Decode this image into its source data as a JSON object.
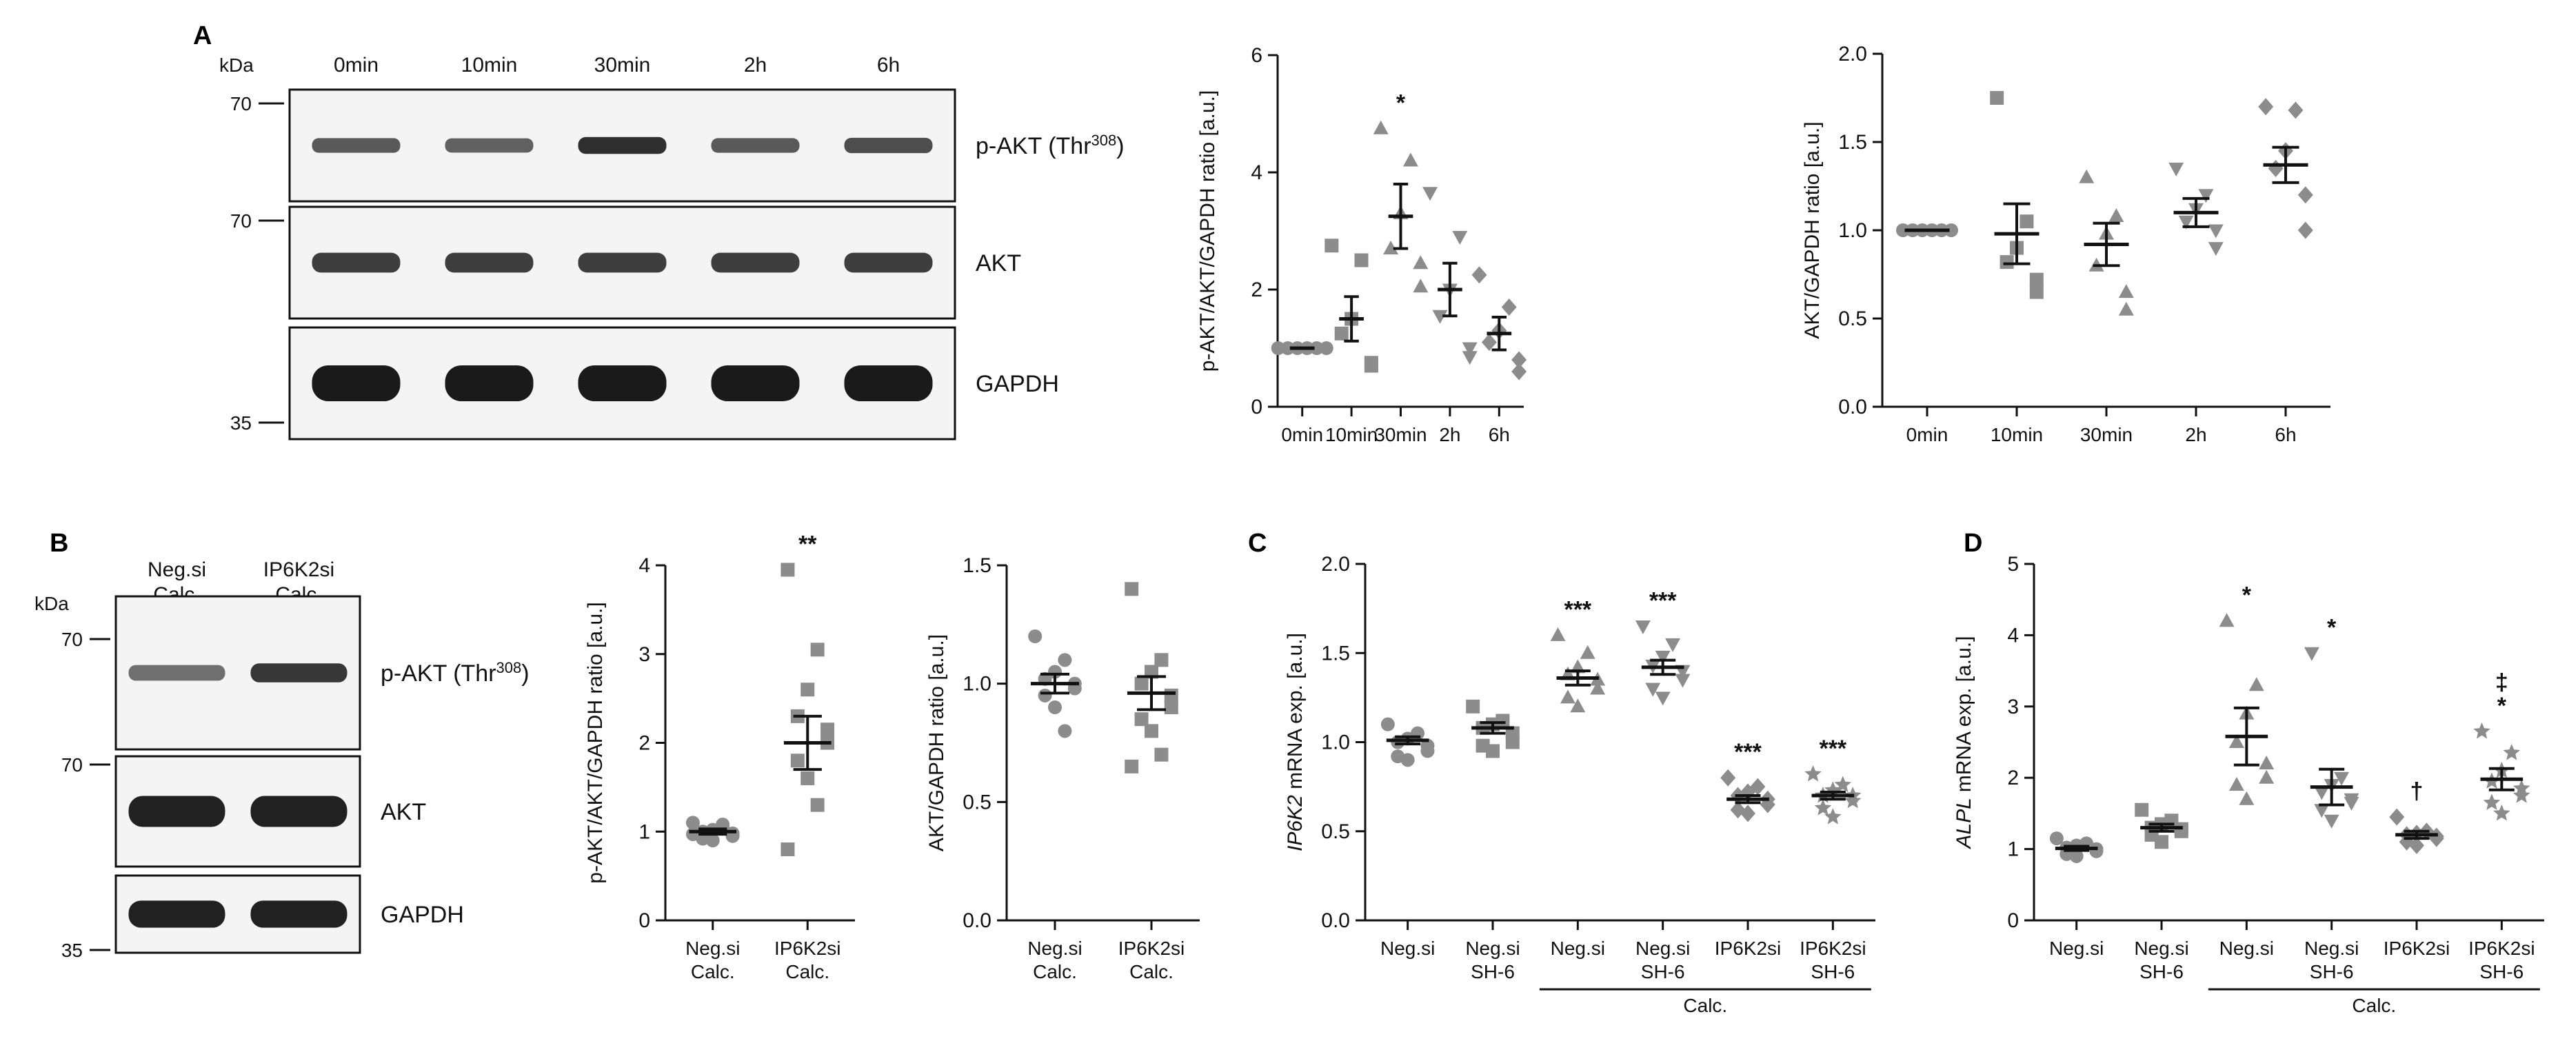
{
  "panels": {
    "A": "A",
    "B": "B",
    "C": "C",
    "D": "D"
  },
  "colors": {
    "ink": "#111111",
    "marker": "#8c8c8c",
    "marker_dark": "#808080",
    "blot_band": "#1a1a1a",
    "blot_bg": "#f4f4f4"
  },
  "blots": [
    {
      "panel": "A",
      "kda_label": "kDa",
      "columns": [
        "0min",
        "10min",
        "30min",
        "2h",
        "6h"
      ],
      "rows": [
        {
          "label": "p-AKT (Thr",
          "superscript": "308",
          "close": ")",
          "marker": "70"
        },
        {
          "label": "AKT",
          "superscript": "",
          "close": "",
          "marker": "70"
        },
        {
          "label": "GAPDH",
          "superscript": "",
          "close": "",
          "marker": "35"
        }
      ],
      "band_intensity": [
        [
          0.55,
          0.5,
          0.85,
          0.55,
          0.65
        ],
        [
          0.75,
          0.75,
          0.75,
          0.75,
          0.75
        ],
        [
          1.0,
          1.0,
          1.0,
          1.0,
          1.0
        ]
      ]
    },
    {
      "panel": "B",
      "kda_label": "kDa",
      "columns": [
        [
          "Neg.si",
          "Calc."
        ],
        [
          "IP6K2si",
          "Calc."
        ]
      ],
      "rows": [
        {
          "label": "p-AKT (Thr",
          "superscript": "308",
          "close": ")",
          "marker": "70"
        },
        {
          "label": "AKT",
          "superscript": "",
          "close": "",
          "marker": "70"
        },
        {
          "label": "GAPDH",
          "superscript": "",
          "close": "",
          "marker": "35"
        }
      ],
      "band_intensity": [
        [
          0.4,
          0.8
        ],
        [
          0.95,
          0.95
        ],
        [
          0.95,
          0.95
        ]
      ]
    }
  ],
  "chart_data": [
    {
      "id": "A1",
      "type": "scatter",
      "ylabel": "p-AKT/AKT/GAPDH ratio [a.u.]",
      "ylim": [
        0,
        6
      ],
      "yticks": [
        "0",
        "2",
        "4",
        "6"
      ],
      "ytick_values": [
        0,
        2,
        4,
        6
      ],
      "categories": [
        [
          "0min"
        ],
        [
          "10min"
        ],
        [
          "30min"
        ],
        [
          "2h"
        ],
        [
          "6h"
        ]
      ],
      "markers": [
        "circle",
        "square",
        "triangle",
        "triangle-down",
        "diamond"
      ],
      "points": [
        [
          1,
          1,
          1,
          1,
          1,
          1
        ],
        [
          2.75,
          2.5,
          1.5,
          1.25,
          0.75,
          0.7
        ],
        [
          4.75,
          4.2,
          3.3,
          2.7,
          2.45,
          2.05
        ],
        [
          3.65,
          2.9,
          2.0,
          1.55,
          1.0,
          0.85
        ],
        [
          2.25,
          1.7,
          1.3,
          1.1,
          0.8,
          0.6
        ]
      ],
      "mean": [
        1.0,
        1.5,
        3.25,
        2.0,
        1.25
      ],
      "sem": [
        0.0,
        0.38,
        0.55,
        0.45,
        0.28
      ],
      "significance": [
        "",
        "",
        "*",
        "",
        ""
      ]
    },
    {
      "id": "A2",
      "type": "scatter",
      "ylabel": "AKT/GAPDH ratio [a.u.]",
      "ylim": [
        0,
        2
      ],
      "yticks": [
        "0.0",
        "0.5",
        "1.0",
        "1.5",
        "2.0"
      ],
      "ytick_values": [
        0,
        0.5,
        1,
        1.5,
        2
      ],
      "categories": [
        [
          "0min"
        ],
        [
          "10min"
        ],
        [
          "30min"
        ],
        [
          "2h"
        ],
        [
          "6h"
        ]
      ],
      "markers": [
        "circle",
        "square",
        "triangle",
        "triangle-down",
        "diamond"
      ],
      "points": [
        [
          1,
          1,
          1,
          1,
          1,
          1
        ],
        [
          1.75,
          1.05,
          0.9,
          0.82,
          0.72,
          0.65
        ],
        [
          1.3,
          1.08,
          0.98,
          0.8,
          0.65,
          0.55
        ],
        [
          1.35,
          1.2,
          1.12,
          1.05,
          1.0,
          0.9
        ],
        [
          1.7,
          1.68,
          1.45,
          1.35,
          1.2,
          1.0
        ]
      ],
      "mean": [
        1.0,
        0.98,
        0.92,
        1.1,
        1.37
      ],
      "sem": [
        0.0,
        0.17,
        0.12,
        0.08,
        0.1
      ],
      "significance": [
        "",
        "",
        "",
        "",
        ""
      ]
    },
    {
      "id": "B1",
      "type": "scatter",
      "ylabel": "p-AKT/AKT/GAPDH ratio [a.u.]",
      "ylim": [
        0,
        4
      ],
      "yticks": [
        "0",
        "1",
        "2",
        "3",
        "4"
      ],
      "ytick_values": [
        0,
        1,
        2,
        3,
        4
      ],
      "categories": [
        [
          "Neg.si",
          "Calc."
        ],
        [
          "IP6K2si",
          "Calc."
        ]
      ],
      "markers": [
        "circle",
        "square"
      ],
      "points": [
        [
          1.1,
          1.05,
          1.02,
          1.0,
          0.98,
          0.95,
          0.92,
          0.9,
          1.08,
          0.97
        ],
        [
          3.95,
          3.05,
          2.6,
          2.3,
          2.15,
          2.0,
          1.8,
          1.6,
          1.3,
          0.8
        ]
      ],
      "mean": [
        1.0,
        2.0
      ],
      "sem": [
        0.03,
        0.3
      ],
      "significance": [
        "",
        "**"
      ]
    },
    {
      "id": "B2",
      "type": "scatter",
      "ylabel": "AKT/GAPDH ratio [a.u.]",
      "ylim": [
        0,
        1.5
      ],
      "yticks": [
        "0.0",
        "0.5",
        "1.0",
        "1.5"
      ],
      "ytick_values": [
        0,
        0.5,
        1,
        1.5
      ],
      "categories": [
        [
          "Neg.si",
          "Calc."
        ],
        [
          "IP6K2si",
          "Calc."
        ]
      ],
      "markers": [
        "circle",
        "square"
      ],
      "points": [
        [
          1.2,
          1.1,
          1.05,
          1.02,
          1.0,
          0.98,
          0.95,
          0.9,
          0.8
        ],
        [
          1.4,
          1.1,
          1.05,
          1.0,
          0.95,
          0.9,
          0.85,
          0.8,
          0.7,
          0.65
        ]
      ],
      "mean": [
        1.0,
        0.96
      ],
      "sem": [
        0.04,
        0.07
      ],
      "significance": [
        "",
        ""
      ]
    },
    {
      "id": "C",
      "type": "scatter",
      "ylabel": "mRNA exp. [a.u.]",
      "ylabel_gene": "IP6K2",
      "ylim": [
        0,
        2
      ],
      "yticks": [
        "0.0",
        "0.5",
        "1.0",
        "1.5",
        "2.0"
      ],
      "ytick_values": [
        0,
        0.5,
        1,
        1.5,
        2
      ],
      "categories": [
        [
          "Neg.si"
        ],
        [
          "Neg.si",
          "SH-6"
        ],
        [
          "Neg.si"
        ],
        [
          "Neg.si",
          "SH-6"
        ],
        [
          "IP6K2si"
        ],
        [
          "IP6K2si",
          "SH-6"
        ]
      ],
      "group_label": "Calc.",
      "group_start": 2,
      "group_end": 5,
      "markers": [
        "circle",
        "square",
        "triangle",
        "triangle-down",
        "diamond",
        "star"
      ],
      "points": [
        [
          1.1,
          1.05,
          1.02,
          1.0,
          0.98,
          0.95,
          0.92,
          0.9
        ],
        [
          1.2,
          1.12,
          1.1,
          1.08,
          1.05,
          1.0,
          0.98,
          0.95
        ],
        [
          1.6,
          1.5,
          1.42,
          1.38,
          1.35,
          1.3,
          1.25,
          1.2
        ],
        [
          1.65,
          1.55,
          1.48,
          1.43,
          1.4,
          1.35,
          1.3,
          1.25
        ],
        [
          0.8,
          0.75,
          0.72,
          0.7,
          0.68,
          0.65,
          0.62,
          0.6
        ],
        [
          0.82,
          0.76,
          0.73,
          0.7,
          0.7,
          0.67,
          0.63,
          0.58
        ]
      ],
      "mean": [
        1.01,
        1.08,
        1.36,
        1.42,
        0.68,
        0.7
      ],
      "sem": [
        0.02,
        0.03,
        0.04,
        0.04,
        0.02,
        0.02
      ],
      "significance": [
        "",
        "",
        "***",
        "***",
        "***",
        "***"
      ]
    },
    {
      "id": "D",
      "type": "scatter",
      "ylabel": "mRNA exp. [a.u.]",
      "ylabel_gene": "ALPL",
      "ylim": [
        0,
        5
      ],
      "yticks": [
        "0",
        "1",
        "2",
        "3",
        "4",
        "5"
      ],
      "ytick_values": [
        0,
        1,
        2,
        3,
        4,
        5
      ],
      "categories": [
        [
          "Neg.si"
        ],
        [
          "Neg.si",
          "SH-6"
        ],
        [
          "Neg.si"
        ],
        [
          "Neg.si",
          "SH-6"
        ],
        [
          "IP6K2si"
        ],
        [
          "IP6K2si",
          "SH-6"
        ]
      ],
      "group_label": "Calc.",
      "group_start": 2,
      "group_end": 5,
      "markers": [
        "circle",
        "square",
        "triangle",
        "triangle-down",
        "diamond",
        "star"
      ],
      "points": [
        [
          1.15,
          1.08,
          1.05,
          1.02,
          1.0,
          0.97,
          0.93,
          0.9
        ],
        [
          1.55,
          1.4,
          1.35,
          1.3,
          1.28,
          1.25,
          1.2,
          1.1
        ],
        [
          4.2,
          3.3,
          2.9,
          2.5,
          2.2,
          2.0,
          1.9,
          1.7
        ],
        [
          3.75,
          2.0,
          1.9,
          1.8,
          1.7,
          1.65,
          1.55,
          1.4
        ],
        [
          1.45,
          1.25,
          1.22,
          1.2,
          1.18,
          1.15,
          1.1,
          1.05
        ],
        [
          2.65,
          2.35,
          2.1,
          1.95,
          1.85,
          1.75,
          1.65,
          1.5
        ]
      ],
      "mean": [
        1.01,
        1.3,
        2.58,
        1.87,
        1.2,
        1.98
      ],
      "sem": [
        0.03,
        0.05,
        0.4,
        0.25,
        0.05,
        0.15
      ],
      "significance": [
        "",
        "",
        "*",
        "*",
        "†",
        "‡\n*"
      ]
    }
  ]
}
